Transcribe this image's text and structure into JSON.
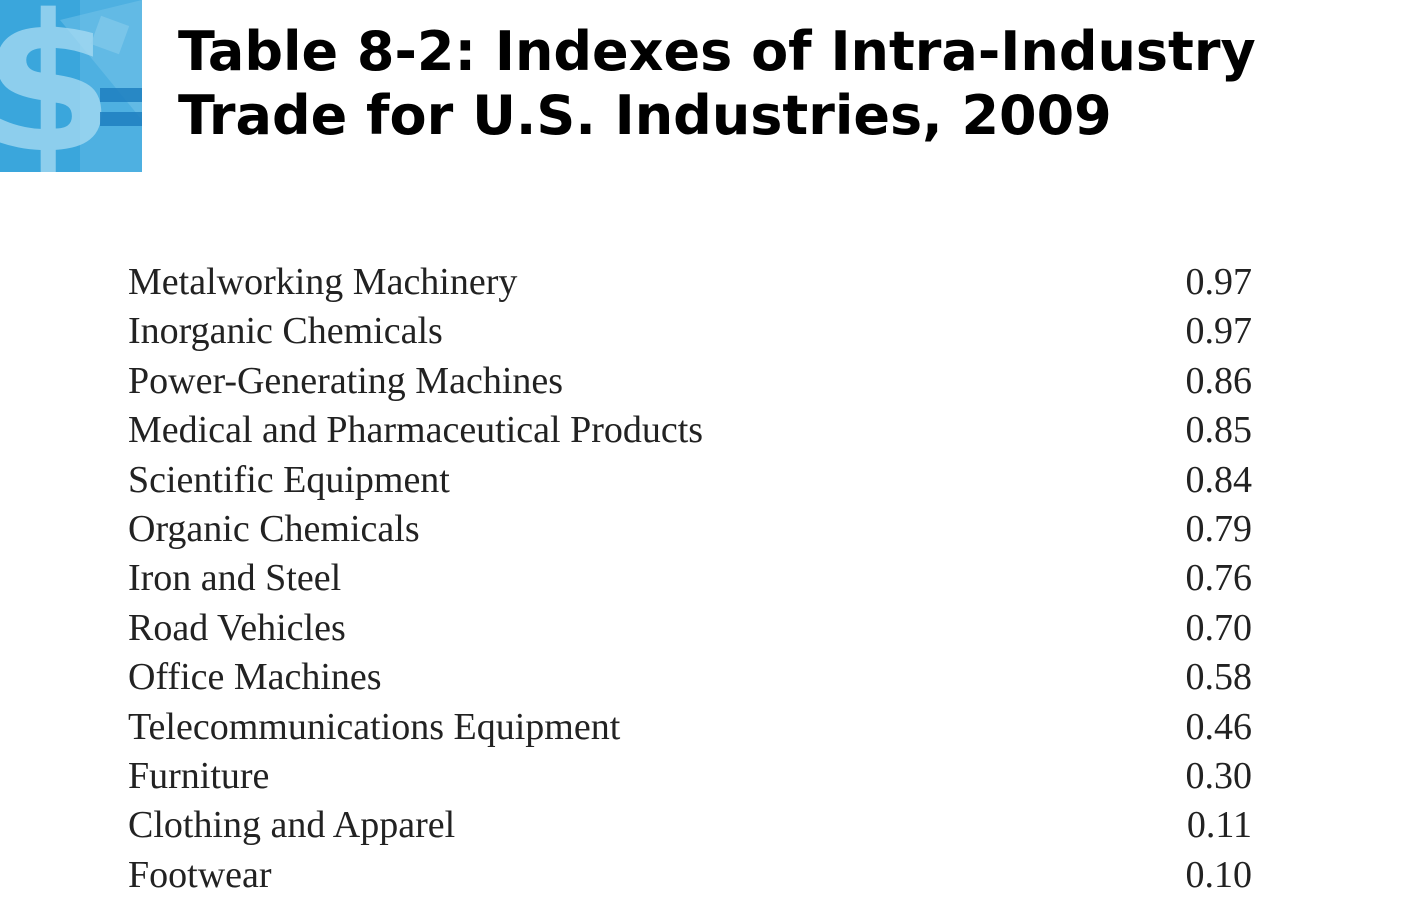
{
  "title": {
    "line1": "Table 8-2: Indexes of Intra-Industry",
    "line2": "Trade for U.S. Industries, 2009"
  },
  "logo": {
    "icon": "dollar-sign-icon",
    "color": "#3aa6dc"
  },
  "rows": [
    {
      "industry": "Metalworking Machinery",
      "index": "0.97"
    },
    {
      "industry": "Inorganic Chemicals",
      "index": "0.97"
    },
    {
      "industry": "Power-Generating Machines",
      "index": "0.86"
    },
    {
      "industry": "Medical and Pharmaceutical Products",
      "index": "0.85"
    },
    {
      "industry": "Scientific Equipment",
      "index": "0.84"
    },
    {
      "industry": "Organic Chemicals",
      "index": "0.79"
    },
    {
      "industry": "Iron and Steel",
      "index": "0.76"
    },
    {
      "industry": "Road Vehicles",
      "index": "0.70"
    },
    {
      "industry": "Office Machines",
      "index": "0.58"
    },
    {
      "industry": "Telecommunications Equipment",
      "index": "0.46"
    },
    {
      "industry": "Furniture",
      "index": "0.30"
    },
    {
      "industry": "Clothing and Apparel",
      "index": "0.11"
    },
    {
      "industry": "Footwear",
      "index": "0.10"
    }
  ]
}
